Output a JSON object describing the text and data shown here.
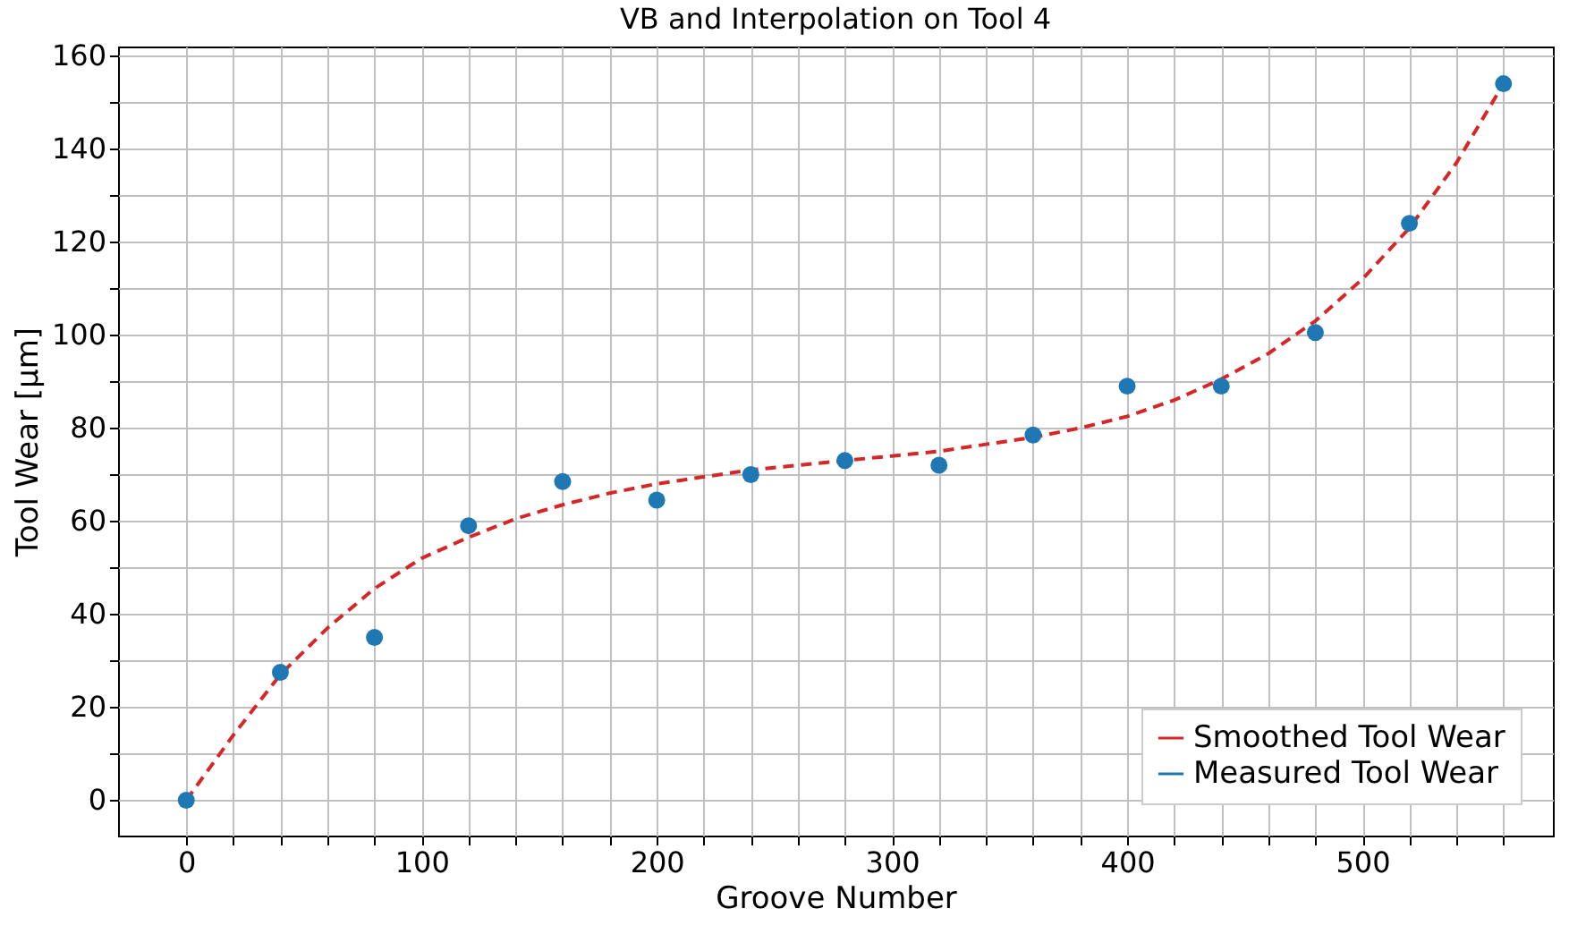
{
  "chart_data": {
    "type": "line",
    "title": "VB and Interpolation on Tool 4",
    "xlabel": "Groove Number",
    "ylabel": "Tool Wear [μm]",
    "xlim": [
      -29,
      581
    ],
    "ylim": [
      -7.6,
      162
    ],
    "xticks": [
      0,
      {
        "value": 20,
        "label": null
      },
      {
        "value": 40,
        "label": null
      },
      {
        "value": 60,
        "label": null
      },
      {
        "value": 80,
        "label": null
      },
      100,
      {
        "value": 120,
        "label": null
      },
      {
        "value": 140,
        "label": null
      },
      {
        "value": 160,
        "label": null
      },
      {
        "value": 180,
        "label": null
      },
      200,
      {
        "value": 220,
        "label": null
      },
      {
        "value": 240,
        "label": null
      },
      {
        "value": 260,
        "label": null
      },
      {
        "value": 280,
        "label": null
      },
      300,
      {
        "value": 320,
        "label": null
      },
      {
        "value": 340,
        "label": null
      },
      {
        "value": 360,
        "label": null
      },
      {
        "value": 380,
        "label": null
      },
      400,
      {
        "value": 420,
        "label": null
      },
      {
        "value": 440,
        "label": null
      },
      {
        "value": 460,
        "label": null
      },
      {
        "value": 480,
        "label": null
      },
      500,
      {
        "value": 520,
        "label": null
      },
      {
        "value": 540,
        "label": null
      },
      {
        "value": 560,
        "label": null
      }
    ],
    "yticks": [
      0,
      {
        "value": 10,
        "label": null
      },
      20,
      {
        "value": 30,
        "label": null
      },
      40,
      {
        "value": 50,
        "label": null
      },
      60,
      {
        "value": 70,
        "label": null
      },
      80,
      {
        "value": 90,
        "label": null
      },
      100,
      {
        "value": 110,
        "label": null
      },
      120,
      {
        "value": 130,
        "label": null
      },
      140,
      {
        "value": 150,
        "label": null
      },
      160
    ],
    "grid": true,
    "legend": "bottom right",
    "series": [
      {
        "name": "Smoothed Tool Wear",
        "color": "#d62728",
        "line_style": "dashed",
        "marker": "none",
        "x": [
          0,
          20,
          40,
          60,
          80,
          100,
          120,
          140,
          160,
          180,
          200,
          220,
          240,
          260,
          280,
          300,
          320,
          340,
          360,
          380,
          400,
          420,
          440,
          460,
          480,
          500,
          520,
          540,
          560
        ],
        "values": [
          0,
          14,
          27,
          37,
          45.5,
          52,
          56.5,
          60.5,
          63.5,
          66,
          68,
          69.5,
          71,
          72,
          73,
          74,
          75,
          76.5,
          78,
          80,
          82.5,
          86,
          90.5,
          96,
          103,
          112,
          123,
          137,
          154
        ]
      },
      {
        "name": "Measured Tool Wear",
        "type": "scatter",
        "color": "#1f77b4",
        "marker": "circle",
        "x": [
          0,
          40,
          80,
          120,
          160,
          200,
          240,
          280,
          320,
          360,
          400,
          440,
          480,
          520,
          560
        ],
        "values": [
          0,
          27.5,
          35,
          59,
          68.5,
          64.5,
          70,
          73,
          72,
          78.5,
          89,
          89,
          100.5,
          124,
          154
        ]
      }
    ]
  }
}
